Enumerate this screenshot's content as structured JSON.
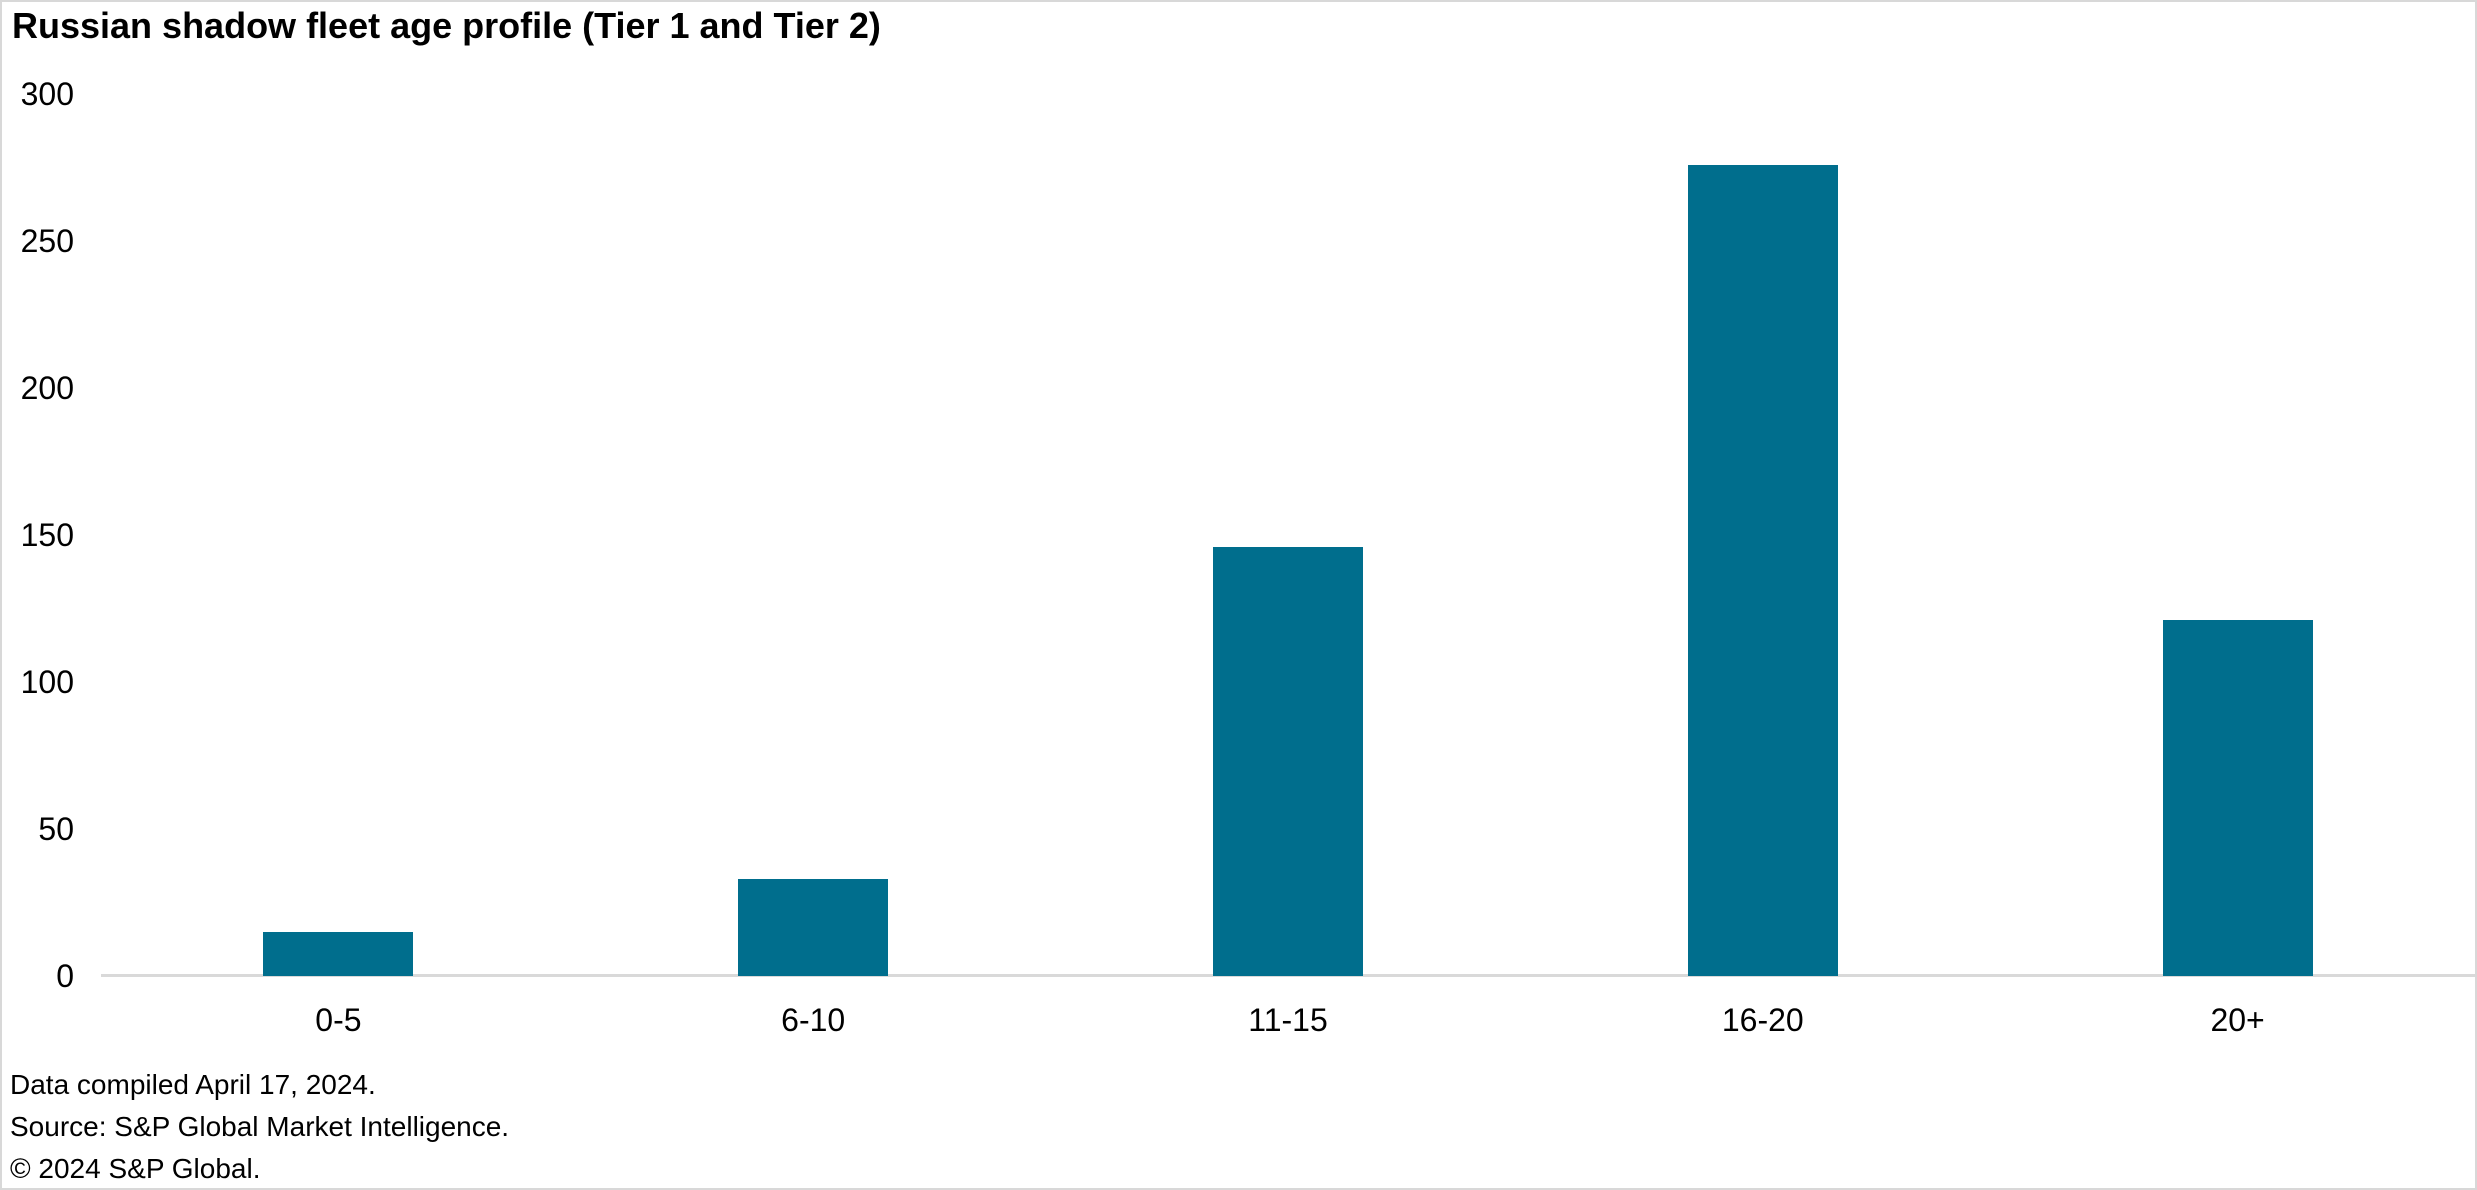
{
  "colors": {
    "bar": "#006e8d",
    "axis_line": "#d9d9d9",
    "frame_border": "#d8d8d8",
    "text": "#000000",
    "background": "#ffffff"
  },
  "footer": {
    "lines": [
      "Data compiled April 17, 2024.",
      "Source: S&P Global Market Intelligence.",
      "© 2024 S&P Global."
    ]
  },
  "chart_data": {
    "type": "bar",
    "title": "Russian shadow fleet age profile (Tier 1 and Tier 2)",
    "categories": [
      "0-5",
      "6-10",
      "11-15",
      "16-20",
      "20+"
    ],
    "values": [
      15,
      33,
      146,
      276,
      121
    ],
    "xlabel": "",
    "ylabel": "",
    "ylim": [
      0,
      300
    ],
    "yticks": [
      0,
      50,
      100,
      150,
      200,
      250,
      300
    ],
    "grid": false,
    "legend_position": "none",
    "bar_color": "#006e8d"
  }
}
